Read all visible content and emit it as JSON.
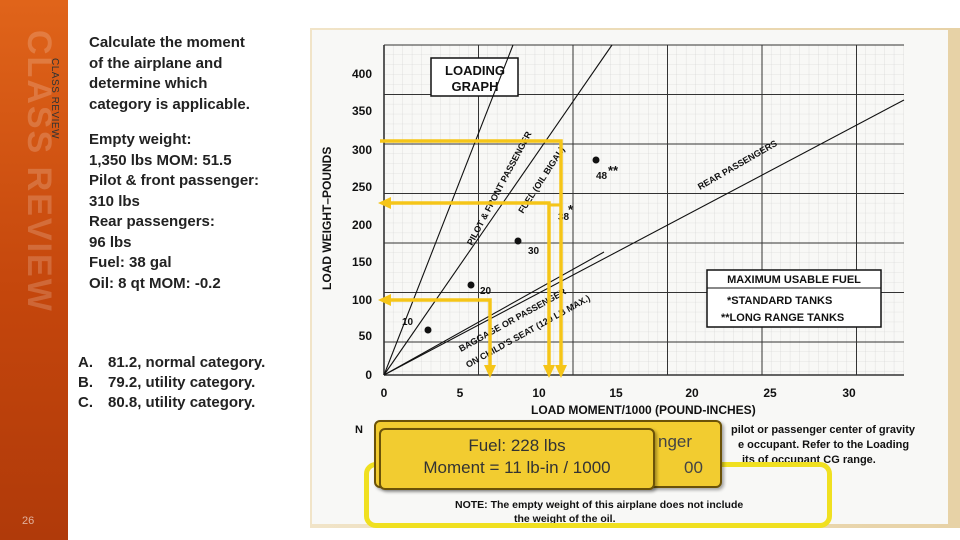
{
  "sidebar": {
    "watermark": "CLASS REVIEW",
    "label": "CLASS REVIEW",
    "slide_number": "26"
  },
  "question": {
    "lines": [
      "Calculate the moment",
      "of the airplane and",
      "determine which",
      "category is applicable.",
      "",
      "Empty weight:",
      "1,350 lbs MOM: 51.5",
      "Pilot & front passenger:",
      "310 lbs",
      "Rear passengers:",
      "96 lbs",
      "Fuel: 38 gal",
      "Oil: 8 qt MOM: -0.2"
    ]
  },
  "answers": [
    {
      "letter": "A.",
      "text": "81.2, normal category."
    },
    {
      "letter": "B.",
      "text": "79.2, utility category."
    },
    {
      "letter": "C.",
      "text": "80.8, utility category."
    }
  ],
  "graph": {
    "title_line1": "LOADING",
    "title_line2": "GRAPH",
    "ylabel": "LOAD WEIGHT–POUNDS",
    "xlabel": "LOAD MOMENT/1000 (POUND-INCHES)",
    "y_ticks": [
      "400",
      "350",
      "300",
      "250",
      "200",
      "150",
      "100",
      "50",
      "0"
    ],
    "x_ticks": [
      "0",
      "5",
      "10",
      "15",
      "20",
      "25",
      "30"
    ],
    "line_labels": {
      "pilot": "PILOT & FRONT PASSENGER",
      "fuel": "FUEL (OIL BIGAL)",
      "rear": "REAR PASSENGERS",
      "baggage1": "BAGGAGE OR PASSENGER",
      "baggage2": "ON CHILD'S SEAT (120 LB MAX.)"
    },
    "point_labels": [
      "10",
      "20",
      "30",
      "38",
      "48"
    ],
    "star1": "*",
    "star2": "**",
    "fuel_box": {
      "title": "MAXIMUM USABLE FUEL",
      "line1": "*STANDARD TANKS",
      "line2": "**LONG RANGE TANKS"
    },
    "note_top": {
      "n": "N",
      "line1": "pilot or passenger center of gravity",
      "line2": "e occupant. Refer to the Loading",
      "line3": "its of occupant CG range."
    },
    "note_bottom": {
      "line1": "NOTE:  The empty weight of this airplane does not include",
      "line2": "the weight of the oil."
    },
    "highlight_color": "#f5c518"
  },
  "callouts": {
    "back_peek1": "nger",
    "back_peek2": "00",
    "front_line1": "Fuel: 228 lbs",
    "front_line2": "Moment = 11 lb-in / 1000"
  }
}
